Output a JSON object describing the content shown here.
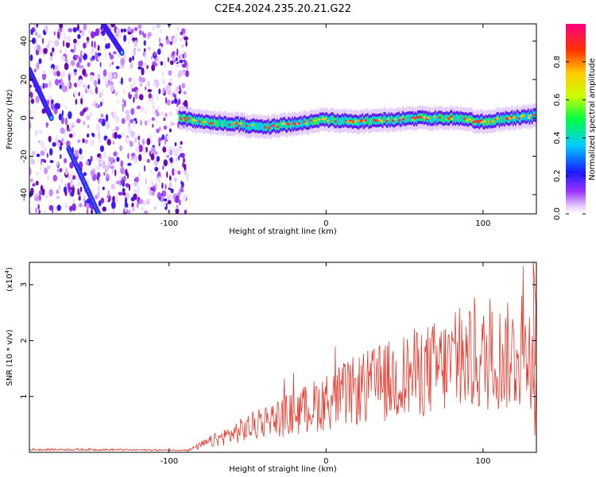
{
  "title": "C2E4.2024.235.20.21.G22",
  "colors": {
    "snr_line": "#e83a2e",
    "axis": "#000000"
  },
  "chart_data": [
    {
      "type": "heatmap",
      "name": "spectrogram",
      "xlabel": "Height of straight line (km)",
      "ylabel": "Frequency (Hz)",
      "xlim": [
        -189,
        134
      ],
      "ylim": [
        -50,
        49
      ],
      "xticks": [
        -100,
        0,
        100
      ],
      "xtick_labels": [
        "-100",
        "0",
        "100"
      ],
      "yticks": [
        -40,
        -20,
        0,
        20,
        40
      ],
      "ytick_labels": [
        "-40",
        "-20",
        "0",
        "20",
        "40"
      ],
      "colorbar": {
        "label": "Normalized spectral amplitude",
        "range": [
          0,
          1
        ],
        "ticks": [
          0.0,
          0.2,
          0.4,
          0.6,
          0.8
        ],
        "tick_labels": [
          "0.0",
          "0.2",
          "0.4",
          "0.6",
          "0.8"
        ]
      },
      "features": {
        "noise_region_x": [
          -189,
          -88
        ],
        "main_trace": [
          [
            -94,
            0
          ],
          [
            -80,
            -2
          ],
          [
            -60,
            -3
          ],
          [
            -40,
            -5
          ],
          [
            -20,
            -3
          ],
          [
            0,
            -1
          ],
          [
            20,
            -2
          ],
          [
            40,
            -1
          ],
          [
            60,
            0
          ],
          [
            80,
            0
          ],
          [
            100,
            -2
          ],
          [
            120,
            0
          ],
          [
            134,
            1
          ]
        ],
        "diagonal_upper": [
          [
            -142,
            49
          ],
          [
            -130,
            34
          ]
        ],
        "diagonal_lower": [
          [
            -164,
            -16
          ],
          [
            -145,
            -50
          ]
        ],
        "diagonal_left": [
          [
            -189,
            25
          ],
          [
            -175,
            0
          ]
        ]
      }
    },
    {
      "type": "line",
      "name": "snr",
      "xlabel": "Height of straight line (km)",
      "ylabel": "SNR (10 * v/v)",
      "scale_label": "(x10",
      "scale_exponent": "4",
      "ylim": [
        0,
        3.4
      ],
      "xlim": [
        -189,
        134
      ],
      "xticks": [
        -100,
        0,
        100
      ],
      "xtick_labels": [
        "-100",
        "0",
        "100"
      ],
      "yticks": [
        1,
        2,
        3
      ],
      "ytick_labels": [
        "1",
        "2",
        "3"
      ],
      "envelope": {
        "x": [
          -189,
          -150,
          -110,
          -88,
          -80,
          -60,
          -40,
          -20,
          0,
          20,
          40,
          60,
          80,
          100,
          120,
          134
        ],
        "y": [
          0.05,
          0.05,
          0.04,
          0.04,
          0.15,
          0.4,
          0.65,
          0.85,
          1.1,
          1.35,
          1.55,
          1.75,
          1.9,
          2.0,
          2.1,
          2.2
        ]
      }
    }
  ]
}
